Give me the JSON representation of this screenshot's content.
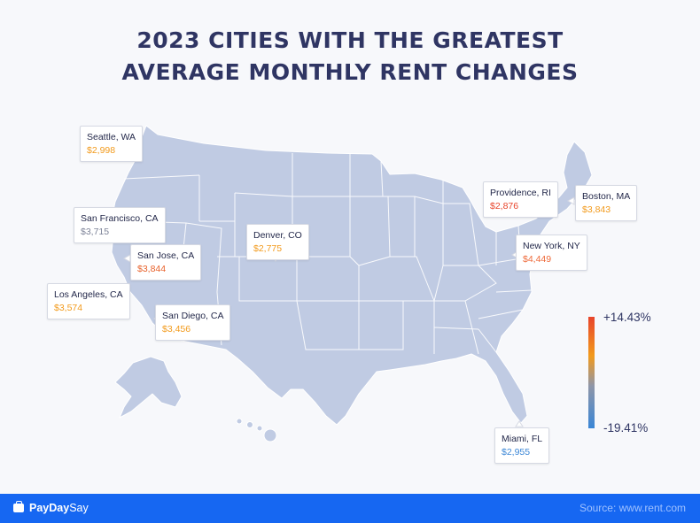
{
  "title": {
    "line1": "2023 CITIES WITH THE GREATEST",
    "line2": "AVERAGE MONTHLY RENT CHANGES"
  },
  "colors": {
    "map_fill": "#c0cbe3",
    "map_border": "#ffffff",
    "increase_high": "#e8442b",
    "increase_mid": "#f29a1c",
    "neutral": "#8f96a8",
    "decrease": "#3a86d6",
    "footer": "#1667f2"
  },
  "cities": [
    {
      "name": "Seattle, WA",
      "rent": "$2,998",
      "color": "#f29a1c"
    },
    {
      "name": "San Francisco, CA",
      "rent": "$3,715",
      "color": "#7d8398"
    },
    {
      "name": "San Jose, CA",
      "rent": "$3,844",
      "color": "#e8612a"
    },
    {
      "name": "Los Angeles, CA",
      "rent": "$3,574",
      "color": "#f29a1c"
    },
    {
      "name": "San Diego, CA",
      "rent": "$3,456",
      "color": "#f29a1c"
    },
    {
      "name": "Denver, CO",
      "rent": "$2,775",
      "color": "#f29a1c"
    },
    {
      "name": "Providence, RI",
      "rent": "$2,876",
      "color": "#e8442b"
    },
    {
      "name": "Boston, MA",
      "rent": "$3,843",
      "color": "#f29a1c"
    },
    {
      "name": "New York, NY",
      "rent": "$4,449",
      "color": "#ee6a3a"
    },
    {
      "name": "Miami, FL",
      "rent": "$2,955",
      "color": "#3a86d6"
    }
  ],
  "legend": {
    "max": "+14.43%",
    "min": "-19.41%"
  },
  "footer": {
    "brand_part1": "PayDay",
    "brand_part2": "Say",
    "brand_icon": "briefcase-icon",
    "source": "Source: www.rent.com"
  }
}
